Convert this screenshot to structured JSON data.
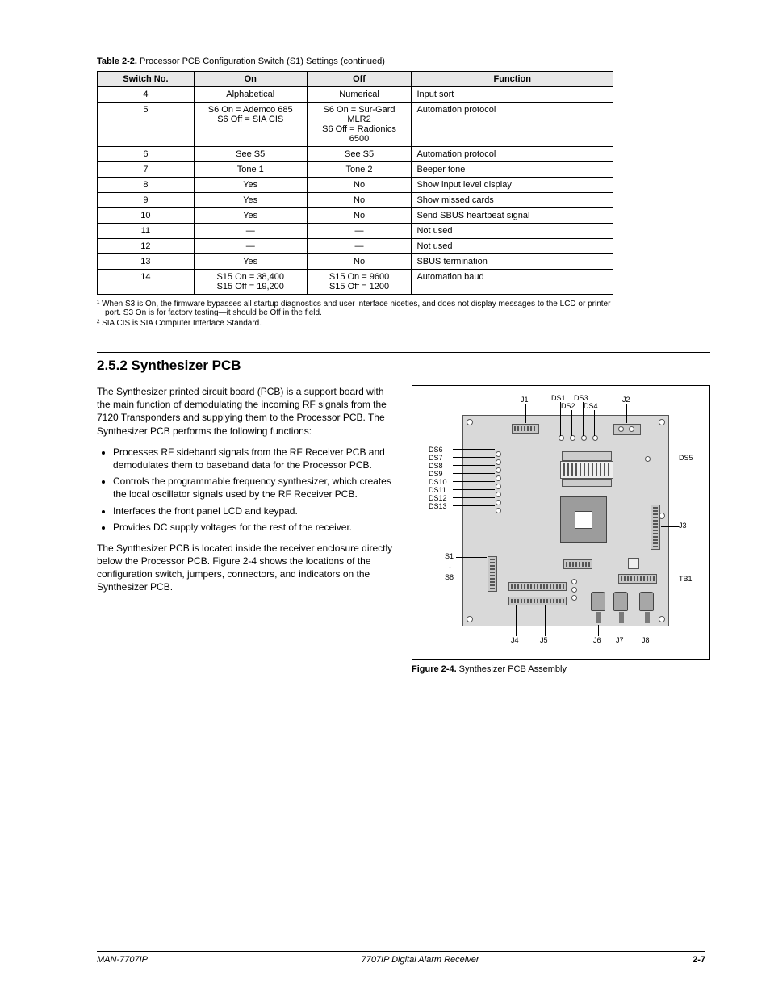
{
  "tableCaption": {
    "lead": "Table 2-2.",
    "rest": " Processor PCB Configuration Switch (S1) Settings (continued)"
  },
  "table": {
    "headers": [
      "Switch No.",
      "On",
      "Off",
      "Function"
    ],
    "colWidths": [
      "120px",
      "140px",
      "130px",
      "250px"
    ],
    "rows": [
      {
        "cells": [
          "4",
          "Alphabetical",
          "Numerical",
          "Input sort"
        ],
        "align": [
          "c",
          "c",
          "c",
          "l"
        ]
      },
      {
        "cells": [
          "5",
          "S6 On = Ademco 685\nS6 Off = SIA CIS",
          "S6 On = Sur-Gard MLR2\nS6 Off = Radionics 6500",
          "Automation protocol"
        ],
        "align": [
          "c",
          "c",
          "c",
          "l"
        ]
      },
      {
        "cells": [
          "6",
          "See S5",
          "See S5",
          "Automation protocol"
        ],
        "align": [
          "c",
          "c",
          "c",
          "l"
        ]
      },
      {
        "cells": [
          "7",
          "Tone 1",
          "Tone 2",
          "Beeper tone"
        ],
        "align": [
          "c",
          "c",
          "c",
          "l"
        ]
      },
      {
        "cells": [
          "8",
          "Yes",
          "No",
          "Show input level display"
        ],
        "align": [
          "c",
          "c",
          "c",
          "l"
        ]
      },
      {
        "cells": [
          "9",
          "Yes",
          "No",
          "Show missed cards"
        ],
        "align": [
          "c",
          "c",
          "c",
          "l"
        ]
      },
      {
        "cells": [
          "10",
          "Yes",
          "No",
          "Send SBUS heartbeat signal"
        ],
        "align": [
          "c",
          "c",
          "c",
          "l"
        ]
      },
      {
        "cells": [
          "11",
          "—",
          "—",
          "Not used"
        ],
        "align": [
          "c",
          "c",
          "c",
          "l"
        ]
      },
      {
        "cells": [
          "12",
          "—",
          "—",
          "Not used"
        ],
        "align": [
          "c",
          "c",
          "c",
          "l"
        ]
      },
      {
        "cells": [
          "13",
          "Yes",
          "No",
          "SBUS termination"
        ],
        "align": [
          "c",
          "c",
          "c",
          "l"
        ]
      },
      {
        "cells": [
          "14",
          "S15 On = 38,400\nS15 Off = 19,200",
          "S15 On = 9600\nS15 Off = 1200",
          "Automation baud"
        ],
        "align": [
          "c",
          "c",
          "c",
          "l"
        ]
      }
    ]
  },
  "notes": [
    "¹ When S3 is On, the firmware bypasses all startup diagnostics and user interface niceties, and does not display messages to the LCD or printer port. S3 On is for factory testing—it should be Off in the field.",
    "² SIA CIS is SIA Computer Interface Standard."
  ],
  "sectionTitle": "2.5.2  Synthesizer PCB",
  "para1": "The Synthesizer printed circuit board (PCB) is a support board with the main function of demodulating the incoming RF signals from the 7120 Transponders and supplying them to the Processor PCB. The Synthesizer PCB performs the following functions:",
  "bullets": [
    "Processes RF sideband signals from the RF Receiver PCB and demodulates them to baseband data for the Processor PCB.",
    "Controls the programmable frequency synthesizer, which creates the local oscillator signals used by the RF Receiver PCB.",
    "Interfaces the front panel LCD and keypad.",
    "Provides DC supply voltages for the rest of the receiver."
  ],
  "para2": "The Synthesizer PCB is located inside the receiver enclosure directly below the Processor PCB. Figure 2-4 shows the locations of the configuration switch, jumpers, connectors, and indicators on the Synthesizer PCB.",
  "figure": {
    "caption": {
      "lead": "Figure 2-4.",
      "rest": " Synthesizer PCB Assembly"
    },
    "topLabels": {
      "J1": "J1",
      "DS1": "DS1",
      "DS2": "DS2",
      "DS3": "DS3",
      "DS4": "DS4",
      "J2": "J2"
    },
    "leftLabels": [
      "DS6",
      "DS7",
      "DS8",
      "DS9",
      "DS10",
      "DS11",
      "DS12",
      "DS13"
    ],
    "rightLabels": {
      "DS5": "DS5",
      "J3": "J3",
      "TB1": "TB1"
    },
    "sideLabels": {
      "S1": "S1",
      "S8": "S8"
    },
    "bottomLabels": {
      "J4": "J4",
      "J5": "J5",
      "J6": "J6",
      "J7": "J7",
      "J8": "J8"
    }
  },
  "footer": {
    "left": "MAN-7707IP",
    "center": "7707IP Digital Alarm Receiver",
    "right": "2-7"
  }
}
